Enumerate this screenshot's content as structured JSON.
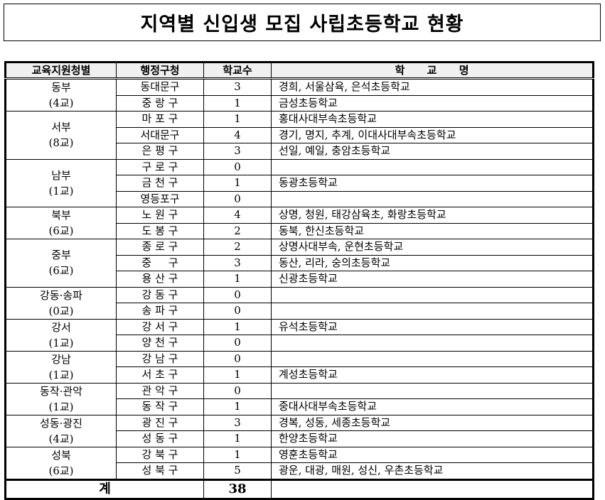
{
  "title": "지역별 신입생 모집 사립초등학교 현황",
  "headers": [
    "교육지원청별",
    "행정구청",
    "학교수",
    "학      교      명"
  ],
  "groups": [
    {
      "name": "동부",
      "count": "(4교)",
      "rows": [
        [
          "동대문구",
          "3",
          "경희, 서울삼육, 은석초등학교"
        ],
        [
          "중 랑 구",
          "1",
          "금성초등학교"
        ]
      ]
    },
    {
      "name": "서부",
      "count": "(8교)",
      "rows": [
        [
          "마 포 구",
          "1",
          "홍대사대부속초등학교"
        ],
        [
          "서대문구",
          "4",
          "경기, 명지, 추계, 이대사대부속초등학교"
        ],
        [
          "은 평 구",
          "3",
          "선일, 예일, 충암초등학교"
        ]
      ]
    },
    {
      "name": "남부",
      "count": "(1교)",
      "rows": [
        [
          "구 로 구",
          "0",
          ""
        ],
        [
          "금 천 구",
          "1",
          "동광초등학교"
        ],
        [
          "영등포구",
          "0",
          ""
        ]
      ]
    },
    {
      "name": "북부",
      "count": "(6교)",
      "rows": [
        [
          "노 원 구",
          "4",
          "상명, 청원, 태강삼육초, 화랑초등학교"
        ],
        [
          "도 봉 구",
          "2",
          "동북, 한신초등학교"
        ]
      ]
    },
    {
      "name": "중부",
      "count": "(6교)",
      "rows": [
        [
          "종 로 구",
          "2",
          "상명사대부속, 운현초등학교"
        ],
        [
          "중     구",
          "3",
          "동산, 리라, 숭의초등학교"
        ],
        [
          "용 산 구",
          "1",
          "신광초등학교"
        ]
      ]
    },
    {
      "name": "강동·송파",
      "count": "(0교)",
      "rows": [
        [
          "강 동 구",
          "0",
          ""
        ],
        [
          "송 파 구",
          "0",
          ""
        ]
      ]
    },
    {
      "name": "강서",
      "count": "(1교)",
      "rows": [
        [
          "강 서 구",
          "1",
          "유석초등학교"
        ],
        [
          "양 천 구",
          "0",
          ""
        ]
      ]
    },
    {
      "name": "강남",
      "count": "(1교)",
      "rows": [
        [
          "강 남 구",
          "0",
          ""
        ],
        [
          "서 초 구",
          "1",
          "계성초등학교"
        ]
      ]
    },
    {
      "name": "동작·관악",
      "count": "(1교)",
      "rows": [
        [
          "관 악 구",
          "0",
          ""
        ],
        [
          "동 작 구",
          "1",
          "중대사대부속초등학교"
        ]
      ]
    },
    {
      "name": "성동·광진",
      "count": "(4교)",
      "rows": [
        [
          "광 진 구",
          "3",
          "경복, 성동, 세종초등학교"
        ],
        [
          "성 동 구",
          "1",
          "한양초등학교"
        ]
      ]
    },
    {
      "name": "성북",
      "count": "(6교)",
      "rows": [
        [
          "강 북 구",
          "1",
          "영훈초등학교"
        ],
        [
          "성 북 구",
          "5",
          "광운, 대광, 매원, 성신, 우촌초등학교"
        ]
      ]
    }
  ],
  "total": {
    "label": "계",
    "value": "38"
  }
}
